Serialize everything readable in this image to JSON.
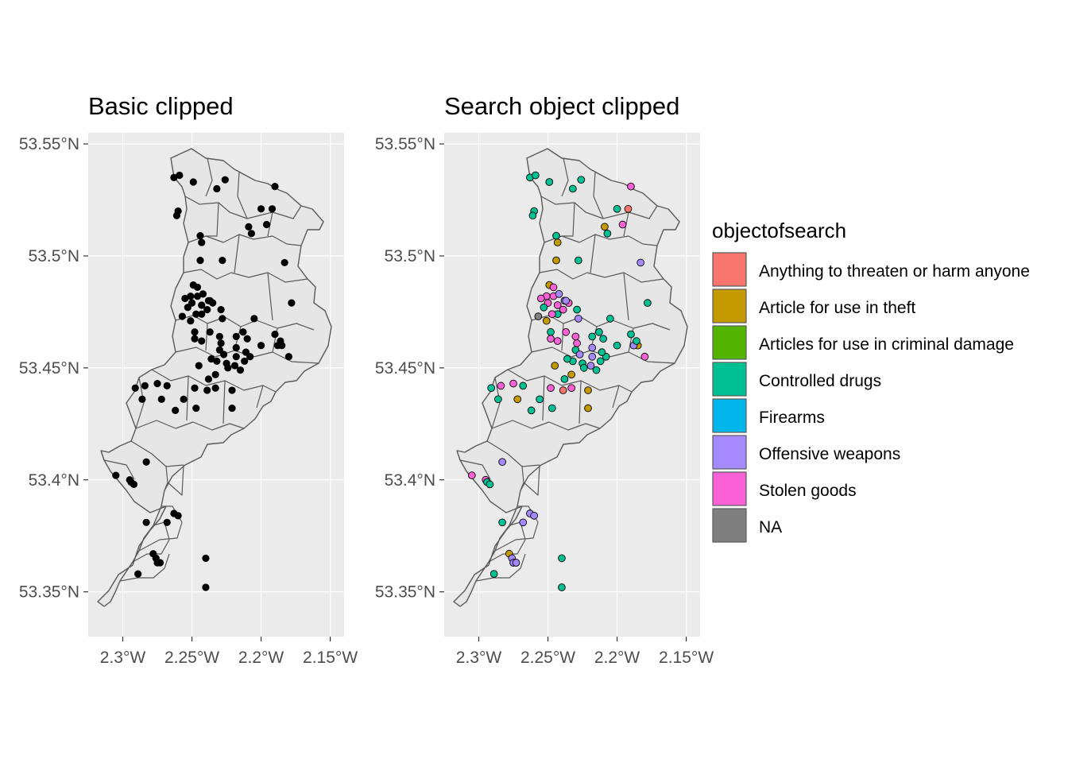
{
  "chart_data": [
    {
      "type": "map",
      "title": "Basic clipped",
      "x_ticks": [
        "2.3°W",
        "2.25°W",
        "2.2°W",
        "2.15°W"
      ],
      "y_ticks": [
        "53.55°N",
        "53.5°N",
        "53.45°N",
        "53.4°N",
        "53.35°N"
      ],
      "xlim_lon": [
        -2.325,
        -2.14
      ],
      "ylim_lat": [
        53.33,
        53.555
      ],
      "grid": true,
      "point_color": "#000000",
      "points": [
        [
          -2.263,
          53.535
        ],
        [
          -2.259,
          53.536
        ],
        [
          -2.249,
          53.533
        ],
        [
          -2.226,
          53.534
        ],
        [
          -2.19,
          53.531
        ],
        [
          -2.192,
          53.521
        ],
        [
          -2.209,
          53.513
        ],
        [
          -2.207,
          53.51
        ],
        [
          -2.196,
          53.514
        ],
        [
          -2.2,
          53.521
        ],
        [
          -2.232,
          53.53
        ],
        [
          -2.26,
          53.52
        ],
        [
          -2.261,
          53.518
        ],
        [
          -2.244,
          53.509
        ],
        [
          -2.243,
          53.506
        ],
        [
          -2.228,
          53.498
        ],
        [
          -2.244,
          53.498
        ],
        [
          -2.249,
          53.487
        ],
        [
          -2.246,
          53.486
        ],
        [
          -2.251,
          53.482
        ],
        [
          -2.246,
          53.482
        ],
        [
          -2.242,
          53.483
        ],
        [
          -2.238,
          53.48
        ],
        [
          -2.243,
          53.478
        ],
        [
          -2.25,
          53.479
        ],
        [
          -2.253,
          53.477
        ],
        [
          -2.239,
          53.476
        ],
        [
          -2.243,
          53.474
        ],
        [
          -2.247,
          53.474
        ],
        [
          -2.251,
          53.471
        ],
        [
          -2.235,
          53.479
        ],
        [
          -2.248,
          53.466
        ],
        [
          -2.237,
          53.466
        ],
        [
          -2.243,
          53.462
        ],
        [
          -2.228,
          53.472
        ],
        [
          -2.237,
          53.48
        ],
        [
          -2.229,
          53.476
        ],
        [
          -2.255,
          53.481
        ],
        [
          -2.257,
          53.473
        ],
        [
          -2.213,
          53.466
        ],
        [
          -2.21,
          53.463
        ],
        [
          -2.218,
          53.464
        ],
        [
          -2.23,
          53.458
        ],
        [
          -2.227,
          53.456
        ],
        [
          -2.232,
          53.453
        ],
        [
          -2.225,
          53.452
        ],
        [
          -2.219,
          53.451
        ],
        [
          -2.215,
          53.449
        ],
        [
          -2.212,
          53.453
        ],
        [
          -2.208,
          53.455
        ],
        [
          -2.218,
          53.455
        ],
        [
          -2.229,
          53.461
        ],
        [
          -2.236,
          53.454
        ],
        [
          -2.221,
          53.44
        ],
        [
          -2.224,
          53.45
        ],
        [
          -2.233,
          53.447
        ],
        [
          -2.245,
          53.451
        ],
        [
          -2.248,
          53.463
        ],
        [
          -2.238,
          53.445
        ],
        [
          -2.218,
          53.459
        ],
        [
          -2.2,
          53.46
        ],
        [
          -2.211,
          53.457
        ],
        [
          -2.23,
          53.464
        ],
        [
          -2.248,
          53.441
        ],
        [
          -2.233,
          53.441
        ],
        [
          -2.247,
          53.432
        ],
        [
          -2.256,
          53.436
        ],
        [
          -2.262,
          53.431
        ],
        [
          -2.268,
          53.442
        ],
        [
          -2.275,
          53.443
        ],
        [
          -2.284,
          53.442
        ],
        [
          -2.291,
          53.441
        ],
        [
          -2.286,
          53.436
        ],
        [
          -2.272,
          53.436
        ],
        [
          -2.185,
          53.46
        ],
        [
          -2.188,
          53.46
        ],
        [
          -2.18,
          53.455
        ],
        [
          -2.178,
          53.479
        ],
        [
          -2.183,
          53.497
        ],
        [
          -2.205,
          53.472
        ],
        [
          -2.186,
          53.462
        ],
        [
          -2.305,
          53.402
        ],
        [
          -2.295,
          53.4
        ],
        [
          -2.294,
          53.399
        ],
        [
          -2.292,
          53.398
        ],
        [
          -2.283,
          53.408
        ],
        [
          -2.263,
          53.385
        ],
        [
          -2.26,
          53.384
        ],
        [
          -2.268,
          53.381
        ],
        [
          -2.283,
          53.381
        ],
        [
          -2.278,
          53.367
        ],
        [
          -2.276,
          53.365
        ],
        [
          -2.275,
          53.363
        ],
        [
          -2.273,
          53.363
        ],
        [
          -2.289,
          53.358
        ],
        [
          -2.24,
          53.365
        ],
        [
          -2.24,
          53.352
        ],
        [
          -2.239,
          53.44
        ],
        [
          -2.221,
          53.432
        ],
        [
          -2.19,
          53.465
        ]
      ]
    },
    {
      "type": "map",
      "title": "Search object clipped",
      "x_ticks": [
        "2.3°W",
        "2.25°W",
        "2.2°W",
        "2.15°W"
      ],
      "y_ticks": [
        "53.55°N",
        "53.5°N",
        "53.45°N",
        "53.4°N",
        "53.35°N"
      ],
      "xlim_lon": [
        -2.325,
        -2.14
      ],
      "ylim_lat": [
        53.33,
        53.555
      ],
      "grid": true,
      "points": [
        [
          -2.263,
          53.535,
          "Controlled drugs"
        ],
        [
          -2.259,
          53.536,
          "Controlled drugs"
        ],
        [
          -2.249,
          53.533,
          "Controlled drugs"
        ],
        [
          -2.226,
          53.534,
          "Controlled drugs"
        ],
        [
          -2.19,
          53.531,
          "Stolen goods"
        ],
        [
          -2.192,
          53.521,
          "Anything to threaten or harm anyone"
        ],
        [
          -2.209,
          53.513,
          "Article for use in theft"
        ],
        [
          -2.207,
          53.51,
          "Controlled drugs"
        ],
        [
          -2.196,
          53.514,
          "Stolen goods"
        ],
        [
          -2.2,
          53.521,
          "Controlled drugs"
        ],
        [
          -2.232,
          53.53,
          "Controlled drugs"
        ],
        [
          -2.26,
          53.52,
          "Controlled drugs"
        ],
        [
          -2.261,
          53.518,
          "Controlled drugs"
        ],
        [
          -2.244,
          53.509,
          "Controlled drugs"
        ],
        [
          -2.243,
          53.506,
          "Article for use in theft"
        ],
        [
          -2.228,
          53.498,
          "Controlled drugs"
        ],
        [
          -2.244,
          53.498,
          "Article for use in theft"
        ],
        [
          -2.249,
          53.487,
          "Article for use in theft"
        ],
        [
          -2.246,
          53.486,
          "Stolen goods"
        ],
        [
          -2.251,
          53.482,
          "Stolen goods"
        ],
        [
          -2.246,
          53.482,
          "Stolen goods"
        ],
        [
          -2.242,
          53.483,
          "Offensive weapons"
        ],
        [
          -2.238,
          53.48,
          "Offensive weapons"
        ],
        [
          -2.243,
          53.478,
          "Stolen goods"
        ],
        [
          -2.25,
          53.479,
          "Stolen goods"
        ],
        [
          -2.253,
          53.477,
          "Controlled drugs"
        ],
        [
          -2.239,
          53.476,
          "Stolen goods"
        ],
        [
          -2.243,
          53.474,
          "Controlled drugs"
        ],
        [
          -2.247,
          53.474,
          "Stolen goods"
        ],
        [
          -2.251,
          53.471,
          "Article for use in theft"
        ],
        [
          -2.235,
          53.479,
          "Stolen goods"
        ],
        [
          -2.248,
          53.466,
          "Controlled drugs"
        ],
        [
          -2.237,
          53.466,
          "Stolen goods"
        ],
        [
          -2.243,
          53.462,
          "Stolen goods"
        ],
        [
          -2.228,
          53.472,
          "Offensive weapons"
        ],
        [
          -2.237,
          53.48,
          "Offensive weapons"
        ],
        [
          -2.229,
          53.476,
          "Controlled drugs"
        ],
        [
          -2.255,
          53.481,
          "Stolen goods"
        ],
        [
          -2.257,
          53.473,
          "NA"
        ],
        [
          -2.213,
          53.466,
          "Controlled drugs"
        ],
        [
          -2.21,
          53.463,
          "Controlled drugs"
        ],
        [
          -2.218,
          53.464,
          "Controlled drugs"
        ],
        [
          -2.23,
          53.458,
          "Controlled drugs"
        ],
        [
          -2.227,
          53.456,
          "Offensive weapons"
        ],
        [
          -2.232,
          53.453,
          "Controlled drugs"
        ],
        [
          -2.225,
          53.452,
          "Controlled drugs"
        ],
        [
          -2.219,
          53.451,
          "Offensive weapons"
        ],
        [
          -2.215,
          53.449,
          "Controlled drugs"
        ],
        [
          -2.212,
          53.453,
          "Controlled drugs"
        ],
        [
          -2.208,
          53.455,
          "Controlled drugs"
        ],
        [
          -2.218,
          53.455,
          "Offensive weapons"
        ],
        [
          -2.229,
          53.461,
          "Stolen goods"
        ],
        [
          -2.236,
          53.454,
          "Controlled drugs"
        ],
        [
          -2.221,
          53.44,
          "Article for use in theft"
        ],
        [
          -2.224,
          53.45,
          "Controlled drugs"
        ],
        [
          -2.233,
          53.447,
          "Article for use in theft"
        ],
        [
          -2.245,
          53.451,
          "Article for use in theft"
        ],
        [
          -2.248,
          53.463,
          "Stolen goods"
        ],
        [
          -2.238,
          53.445,
          "Controlled drugs"
        ],
        [
          -2.218,
          53.459,
          "Offensive weapons"
        ],
        [
          -2.2,
          53.46,
          "Controlled drugs"
        ],
        [
          -2.211,
          53.457,
          "Controlled drugs"
        ],
        [
          -2.23,
          53.464,
          "Stolen goods"
        ],
        [
          -2.248,
          53.441,
          "Stolen goods"
        ],
        [
          -2.233,
          53.441,
          "Stolen goods"
        ],
        [
          -2.247,
          53.432,
          "Controlled drugs"
        ],
        [
          -2.256,
          53.436,
          "Controlled drugs"
        ],
        [
          -2.262,
          53.431,
          "Controlled drugs"
        ],
        [
          -2.268,
          53.442,
          "Controlled drugs"
        ],
        [
          -2.275,
          53.443,
          "Stolen goods"
        ],
        [
          -2.284,
          53.442,
          "Stolen goods"
        ],
        [
          -2.291,
          53.441,
          "Controlled drugs"
        ],
        [
          -2.286,
          53.436,
          "Controlled drugs"
        ],
        [
          -2.272,
          53.436,
          "Article for use in theft"
        ],
        [
          -2.185,
          53.46,
          "Article for use in theft"
        ],
        [
          -2.188,
          53.46,
          "Offensive weapons"
        ],
        [
          -2.18,
          53.455,
          "Stolen goods"
        ],
        [
          -2.178,
          53.479,
          "Controlled drugs"
        ],
        [
          -2.183,
          53.497,
          "Offensive weapons"
        ],
        [
          -2.205,
          53.472,
          "Controlled drugs"
        ],
        [
          -2.186,
          53.462,
          "Controlled drugs"
        ],
        [
          -2.305,
          53.402,
          "Stolen goods"
        ],
        [
          -2.295,
          53.4,
          "Stolen goods"
        ],
        [
          -2.294,
          53.399,
          "Controlled drugs"
        ],
        [
          -2.292,
          53.398,
          "Controlled drugs"
        ],
        [
          -2.283,
          53.408,
          "Offensive weapons"
        ],
        [
          -2.263,
          53.385,
          "Offensive weapons"
        ],
        [
          -2.26,
          53.384,
          "Offensive weapons"
        ],
        [
          -2.268,
          53.381,
          "Offensive weapons"
        ],
        [
          -2.283,
          53.381,
          "Controlled drugs"
        ],
        [
          -2.278,
          53.367,
          "Article for use in theft"
        ],
        [
          -2.276,
          53.365,
          "Offensive weapons"
        ],
        [
          -2.275,
          53.363,
          "Offensive weapons"
        ],
        [
          -2.273,
          53.363,
          "Offensive weapons"
        ],
        [
          -2.289,
          53.358,
          "Controlled drugs"
        ],
        [
          -2.24,
          53.365,
          "Controlled drugs"
        ],
        [
          -2.24,
          53.352,
          "Controlled drugs"
        ],
        [
          -2.239,
          53.44,
          "Anything to threaten or harm anyone"
        ],
        [
          -2.221,
          53.432,
          "Article for use in theft"
        ],
        [
          -2.19,
          53.465,
          "Controlled drugs"
        ]
      ],
      "legend": {
        "title": "objectofsearch",
        "position": "right",
        "items": [
          {
            "label": "Anything to threaten or harm anyone",
            "color": "#F8766D"
          },
          {
            "label": "Article for use in theft",
            "color": "#C49A00"
          },
          {
            "label": "Articles for use in criminal damage",
            "color": "#53B400"
          },
          {
            "label": "Controlled drugs",
            "color": "#00C094"
          },
          {
            "label": "Firearms",
            "color": "#00B6EB"
          },
          {
            "label": "Offensive weapons",
            "color": "#A58AFF"
          },
          {
            "label": "Stolen goods",
            "color": "#FB61D7"
          },
          {
            "label": "NA",
            "color": "#7F7F7F"
          }
        ]
      }
    }
  ]
}
